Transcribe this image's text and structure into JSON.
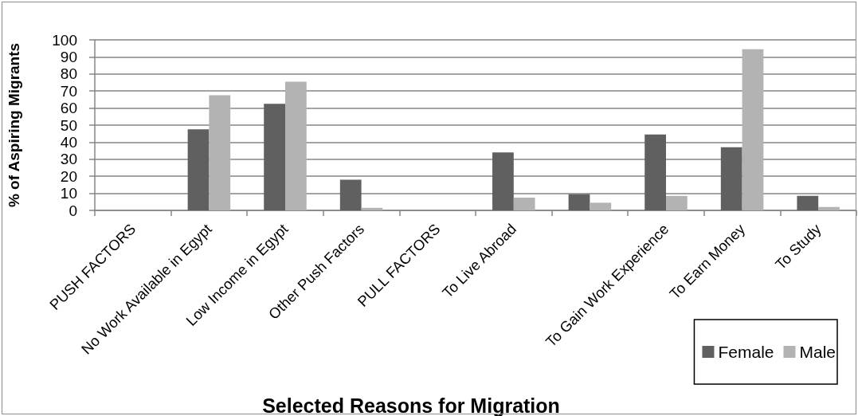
{
  "chart_data": {
    "type": "bar",
    "xlabel": "Selected Reasons for Migration",
    "ylabel": "% of Aspiring Migrants",
    "categories": [
      "PUSH FACTORS",
      "No Work Available in Egypt",
      "Low Income in Egypt",
      "Other Push Factors",
      "PULL FACTORS",
      "To Live Abroad",
      null,
      "To Gain Work Experience",
      "To Earn Money",
      "To Study"
    ],
    "series": [
      {
        "name": "Female",
        "color": "#606060",
        "values": [
          null,
          47.5,
          62.5,
          18,
          null,
          34,
          9.5,
          44.5,
          37,
          8.5
        ]
      },
      {
        "name": "Male",
        "color": "#b3b3b3",
        "values": [
          null,
          67.5,
          75.5,
          1.5,
          null,
          7.5,
          4.5,
          8.5,
          94.5,
          2
        ]
      }
    ],
    "ylim": [
      0,
      100
    ],
    "yticks": [
      0,
      10,
      20,
      30,
      40,
      50,
      60,
      70,
      80,
      90,
      100
    ],
    "grid": "y",
    "legend": "bottom right"
  }
}
